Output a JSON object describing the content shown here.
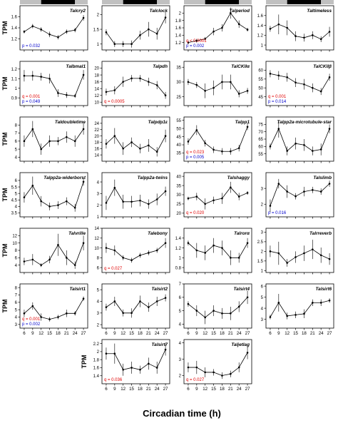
{
  "figure": {
    "xlabel": "Circadian time (h)",
    "ylabel": "TPM",
    "x_ticks": [
      6,
      9,
      12,
      15,
      18,
      21,
      24,
      27
    ],
    "light_bar": {
      "light": "#c0c0c0",
      "dark": "#000000"
    },
    "colors": {
      "q": "#e00000",
      "p": "#0000cc",
      "line": "#000000"
    }
  },
  "chart_data": [
    {
      "type": "line",
      "title": "Talcry2",
      "x": [
        6,
        9,
        12,
        15,
        18,
        21,
        24,
        27
      ],
      "y": [
        1.33,
        1.43,
        1.37,
        1.28,
        1.23,
        1.33,
        1.36,
        1.58
      ],
      "err": [
        0.03,
        0.04,
        0.04,
        0.05,
        0.04,
        0.04,
        0.04,
        0.05
      ],
      "ylim": [
        1.0,
        1.8
      ],
      "yticks": [
        1.2,
        1.4,
        1.6
      ],
      "q": "",
      "p": "p = 0.032"
    },
    {
      "type": "line",
      "title": "Talclock",
      "x": [
        6,
        9,
        12,
        15,
        18,
        21,
        24,
        27
      ],
      "y": [
        1.4,
        1.0,
        1.0,
        1.0,
        1.3,
        1.5,
        1.35,
        1.9
      ],
      "err": [
        0.1,
        0.1,
        0.1,
        0.12,
        0.15,
        0.25,
        0.2,
        0.2
      ],
      "ylim": [
        0.8,
        2.3
      ],
      "yticks": [
        1.0,
        1.5,
        2.0
      ],
      "q": "",
      "p": ""
    },
    {
      "type": "line",
      "title": "Talperiod",
      "x": [
        6,
        9,
        12,
        15,
        18,
        21,
        24,
        27
      ],
      "y": [
        1.2,
        1.25,
        1.3,
        1.5,
        1.6,
        2.0,
        1.7,
        1.55
      ],
      "err": [
        0.05,
        0.05,
        0.05,
        0.1,
        0.1,
        0.15,
        0.1,
        0.05
      ],
      "ylim": [
        1.0,
        2.2
      ],
      "yticks": [
        1.2,
        1.4,
        1.6,
        1.8,
        2.0
      ],
      "q": "q < 0.0001",
      "p": "p = 0.002"
    },
    {
      "type": "line",
      "title": "Taltimeless",
      "x": [
        6,
        9,
        12,
        15,
        18,
        21,
        24,
        27
      ],
      "y": [
        1.33,
        1.42,
        1.35,
        1.18,
        1.15,
        1.2,
        1.12,
        1.27
      ],
      "err": [
        0.06,
        0.2,
        0.15,
        0.1,
        0.08,
        0.08,
        0.06,
        0.1
      ],
      "ylim": [
        0.9,
        1.8
      ],
      "yticks": [
        1.0,
        1.2,
        1.4,
        1.6
      ],
      "q": "",
      "p": ""
    },
    {
      "type": "line",
      "title": "Talbmal1",
      "x": [
        6,
        9,
        12,
        15,
        18,
        21,
        24,
        27
      ],
      "y": [
        1.13,
        1.13,
        1.12,
        1.1,
        0.95,
        0.93,
        0.92,
        1.14
      ],
      "err": [
        0.06,
        0.05,
        0.04,
        0.05,
        0.04,
        0.03,
        0.02,
        0.05
      ],
      "ylim": [
        0.82,
        1.28
      ],
      "yticks": [
        0.9,
        1.0,
        1.1,
        1.2
      ],
      "q": "q = 0.001",
      "p": "p = 0.049"
    },
    {
      "type": "line",
      "title": "Talpdh",
      "x": [
        6,
        9,
        12,
        15,
        18,
        21,
        24,
        27
      ],
      "y": [
        13,
        13.5,
        16,
        17,
        17,
        16,
        15,
        12
      ],
      "err": [
        1.0,
        1.2,
        1.5,
        1.0,
        1.0,
        1.2,
        1.2,
        1.0
      ],
      "ylim": [
        9,
        22
      ],
      "yticks": [
        10,
        12,
        14,
        16,
        18,
        20
      ],
      "q": "q = 0.0005",
      "p": ""
    },
    {
      "type": "line",
      "title": "TalCKIIα",
      "x": [
        6,
        9,
        12,
        15,
        18,
        21,
        24,
        27
      ],
      "y": [
        30,
        29,
        27,
        28,
        30,
        30,
        26,
        27
      ],
      "err": [
        1.0,
        1.0,
        2.5,
        2.5,
        2.5,
        2.5,
        1.2,
        1.0
      ],
      "ylim": [
        22,
        37
      ],
      "yticks": [
        25,
        30,
        35
      ],
      "q": "",
      "p": ""
    },
    {
      "type": "line",
      "title": "TalCKIIβ",
      "x": [
        6,
        9,
        12,
        15,
        18,
        21,
        24,
        27
      ],
      "y": [
        58,
        57,
        56,
        53,
        52,
        50,
        48,
        56
      ],
      "err": [
        2.0,
        2.5,
        2.5,
        2.5,
        3.0,
        2.5,
        2.0,
        2.0
      ],
      "ylim": [
        40,
        65
      ],
      "yticks": [
        45,
        50,
        55,
        60
      ],
      "q": "q = 0.001",
      "p": "p = 0.014"
    },
    {
      "type": "line",
      "title": "Taldoubletime",
      "x": [
        6,
        9,
        12,
        15,
        18,
        21,
        24,
        27
      ],
      "y": [
        6.0,
        7.5,
        5.0,
        6.0,
        6.0,
        6.5,
        6.0,
        7.5
      ],
      "err": [
        0.7,
        1.0,
        0.7,
        0.7,
        0.5,
        0.7,
        0.7,
        0.7
      ],
      "ylim": [
        3.5,
        9.0
      ],
      "yticks": [
        4,
        5,
        6,
        7,
        8
      ],
      "q": "",
      "p": ""
    },
    {
      "type": "line",
      "title": "Talpdp1ε",
      "x": [
        6,
        9,
        12,
        15,
        18,
        21,
        24,
        27
      ],
      "y": [
        17.5,
        20,
        16,
        18,
        16,
        17,
        15,
        20
      ],
      "err": [
        1.5,
        2.5,
        2.0,
        1.5,
        1.5,
        2.0,
        1.5,
        2.0
      ],
      "ylim": [
        12,
        26
      ],
      "yticks": [
        14,
        16,
        18,
        20,
        22,
        24
      ],
      "q": "",
      "p": ""
    },
    {
      "type": "line",
      "title": "Talpp1",
      "x": [
        6,
        9,
        12,
        15,
        18,
        21,
        24,
        27
      ],
      "y": [
        42,
        49,
        41,
        37,
        36,
        36,
        38,
        51
      ],
      "err": [
        2.0,
        3.0,
        2.0,
        2.0,
        2.0,
        2.0,
        2.0,
        2.0
      ],
      "ylim": [
        30,
        57
      ],
      "yticks": [
        35,
        40,
        45,
        50,
        55
      ],
      "q": "q = 0.023",
      "p": "p = 0.005"
    },
    {
      "type": "line",
      "title": "Talpp2a-microtubule-star",
      "x": [
        6,
        9,
        12,
        15,
        18,
        21,
        24,
        27
      ],
      "y": [
        60,
        72,
        57,
        62,
        61,
        57,
        58,
        72
      ],
      "err": [
        2.0,
        6.0,
        3.0,
        4.0,
        4.0,
        3.0,
        4.0,
        3.0
      ],
      "ylim": [
        50,
        80
      ],
      "yticks": [
        55,
        60,
        65,
        70,
        75
      ],
      "q": "",
      "p": ""
    },
    {
      "type": "line",
      "title": "Talpp2a-widerborst",
      "x": [
        6,
        9,
        12,
        15,
        18,
        21,
        24,
        27
      ],
      "y": [
        4.7,
        5.6,
        4.4,
        4.0,
        4.1,
        4.4,
        3.9,
        5.9
      ],
      "err": [
        0.4,
        0.7,
        0.4,
        0.3,
        0.3,
        0.3,
        0.3,
        0.3
      ],
      "ylim": [
        3.2,
        6.6
      ],
      "yticks": [
        3.5,
        4.0,
        4.5,
        5.0,
        5.5,
        6.0
      ],
      "q": "",
      "p": ""
    },
    {
      "type": "line",
      "title": "Talpp2a-twins",
      "x": [
        6,
        9,
        12,
        15,
        18,
        21,
        24,
        27
      ],
      "y": [
        2.2,
        3.5,
        2.3,
        2.3,
        2.4,
        2.1,
        2.5,
        3.2
      ],
      "err": [
        0.6,
        0.7,
        0.6,
        0.5,
        0.5,
        0.4,
        0.5,
        0.4
      ],
      "ylim": [
        1.0,
        4.8
      ],
      "yticks": [
        1,
        2,
        3,
        4
      ],
      "q": "",
      "p": ""
    },
    {
      "type": "line",
      "title": "Talshaggy",
      "x": [
        6,
        9,
        12,
        15,
        18,
        21,
        24,
        27
      ],
      "y": [
        28,
        29,
        25,
        27,
        28,
        34,
        29,
        31
      ],
      "err": [
        1.0,
        2.0,
        3.0,
        2.0,
        3.0,
        3.0,
        2.0,
        1.0
      ],
      "ylim": [
        18,
        42
      ],
      "yticks": [
        20,
        25,
        30,
        35,
        40
      ],
      "q": "q = 0.020",
      "p": ""
    },
    {
      "type": "line",
      "title": "Talslimb",
      "x": [
        6,
        9,
        12,
        15,
        18,
        21,
        24,
        27
      ],
      "y": [
        1.9,
        3.3,
        2.8,
        2.5,
        2.8,
        2.9,
        2.8,
        3.3
      ],
      "err": [
        0.4,
        0.3,
        0.4,
        0.2,
        0.3,
        0.2,
        0.2,
        0.2
      ],
      "ylim": [
        1.2,
        4.0
      ],
      "yticks": [
        2,
        3
      ],
      "q": "",
      "p": "p = 0.016"
    },
    {
      "type": "line",
      "title": "Talvrille",
      "x": [
        6,
        9,
        12,
        15,
        18,
        21,
        24,
        27
      ],
      "y": [
        5.0,
        5.5,
        4.0,
        5.5,
        9.5,
        6.0,
        4.0,
        10.0
      ],
      "err": [
        1.0,
        1.5,
        0.5,
        1.0,
        3.0,
        2.0,
        1.0,
        2.0
      ],
      "ylim": [
        2,
        14
      ],
      "yticks": [
        4,
        6,
        8,
        10,
        12
      ],
      "q": "",
      "p": ""
    },
    {
      "type": "line",
      "title": "Talebony",
      "x": [
        6,
        9,
        12,
        15,
        18,
        21,
        24,
        27
      ],
      "y": [
        10,
        9.5,
        8.0,
        7.5,
        8.5,
        9.0,
        9.5,
        11
      ],
      "err": [
        1.0,
        1.0,
        0.5,
        0.5,
        0.5,
        0.5,
        0.5,
        1.0
      ],
      "ylim": [
        5,
        14
      ],
      "yticks": [
        6,
        8,
        10,
        12,
        14
      ],
      "q": "q = 0.027",
      "p": ""
    },
    {
      "type": "line",
      "title": "Talrorα",
      "x": [
        6,
        9,
        12,
        15,
        18,
        21,
        24,
        27
      ],
      "y": [
        1.3,
        1.15,
        1.1,
        1.25,
        1.2,
        1.0,
        1.0,
        1.3
      ],
      "err": [
        0.05,
        0.15,
        0.15,
        0.15,
        0.15,
        0.15,
        0.1,
        0.1
      ],
      "ylim": [
        0.7,
        1.6
      ],
      "yticks": [
        0.8,
        1.0,
        1.2,
        1.4
      ],
      "q": "",
      "p": ""
    },
    {
      "type": "line",
      "title": "Talrreverb",
      "x": [
        6,
        9,
        12,
        15,
        18,
        21,
        24,
        27
      ],
      "y": [
        2.0,
        1.9,
        1.4,
        1.7,
        1.9,
        2.1,
        1.8,
        1.6
      ],
      "err": [
        0.3,
        0.6,
        0.2,
        0.3,
        0.4,
        0.5,
        0.4,
        0.3
      ],
      "ylim": [
        0.9,
        3.2
      ],
      "yticks": [
        1.0,
        1.5,
        2.0,
        2.5,
        3.0
      ],
      "q": "",
      "p": ""
    },
    {
      "type": "line",
      "title": "Talsirt1",
      "x": [
        6,
        9,
        12,
        15,
        18,
        21,
        24,
        27
      ],
      "y": [
        4.5,
        5.5,
        4.0,
        3.7,
        4.0,
        4.5,
        4.5,
        6.5
      ],
      "err": [
        0.5,
        0.5,
        0.5,
        0.3,
        0.3,
        0.5,
        0.3,
        0.3
      ],
      "ylim": [
        2.5,
        8.5
      ],
      "yticks": [
        3,
        4,
        5,
        6,
        7,
        8
      ],
      "q": "q = 0.001",
      "p": "p = 0.002"
    },
    {
      "type": "line",
      "title": "Talsirt2",
      "x": [
        6,
        9,
        12,
        15,
        18,
        21,
        24,
        27
      ],
      "y": [
        3.5,
        4.0,
        3.0,
        3.0,
        4.0,
        3.5,
        4.0,
        4.3
      ],
      "err": [
        0.3,
        0.4,
        0.3,
        0.4,
        0.5,
        0.4,
        0.4,
        0.3
      ],
      "ylim": [
        1.7,
        5.5
      ],
      "yticks": [
        2,
        3,
        4,
        5
      ],
      "q": "",
      "p": ""
    },
    {
      "type": "line",
      "title": "Talsirt4",
      "x": [
        6,
        9,
        12,
        15,
        18,
        21,
        24,
        27
      ],
      "y": [
        5.5,
        5.0,
        4.5,
        5.0,
        4.8,
        4.8,
        5.3,
        6.0
      ],
      "err": [
        0.2,
        0.4,
        0.5,
        0.4,
        0.4,
        0.5,
        0.4,
        0.5
      ],
      "ylim": [
        3.7,
        7.0
      ],
      "yticks": [
        4,
        5,
        6,
        7
      ],
      "q": "",
      "p": ""
    },
    {
      "type": "line",
      "title": "Talsirt6",
      "x": [
        6,
        9,
        12,
        15,
        18,
        21,
        24,
        27
      ],
      "y": [
        3.2,
        4.5,
        3.3,
        3.4,
        3.5,
        4.5,
        4.5,
        4.7
      ],
      "err": [
        0.2,
        0.8,
        0.3,
        0.3,
        0.4,
        0.3,
        0.3,
        0.2
      ],
      "ylim": [
        2.2,
        6.2
      ],
      "yticks": [
        3,
        4,
        5,
        6
      ],
      "q": "",
      "p": ""
    },
    {
      "type": "line",
      "title": "Talsirt7",
      "x": [
        6,
        9,
        12,
        15,
        18,
        21,
        24,
        27
      ],
      "y": [
        1.95,
        1.95,
        1.55,
        1.6,
        1.55,
        1.7,
        1.6,
        2.05
      ],
      "err": [
        0.15,
        0.25,
        0.15,
        0.15,
        0.1,
        0.15,
        0.15,
        0.15
      ],
      "ylim": [
        1.2,
        2.3
      ],
      "yticks": [
        1.4,
        1.6,
        1.8,
        2.0,
        2.2
      ],
      "q": "q = 0.036",
      "p": ""
    },
    {
      "type": "line",
      "title": "Taljetlag",
      "x": [
        6,
        9,
        12,
        15,
        18,
        21,
        24,
        27
      ],
      "y": [
        2.5,
        2.5,
        2.2,
        2.2,
        2.0,
        2.1,
        2.5,
        3.4
      ],
      "err": [
        0.3,
        0.4,
        0.3,
        0.2,
        0.2,
        0.2,
        0.3,
        0.4
      ],
      "ylim": [
        1.5,
        4.2
      ],
      "yticks": [
        2,
        3,
        4
      ],
      "q": "q = 0.027",
      "p": ""
    }
  ]
}
